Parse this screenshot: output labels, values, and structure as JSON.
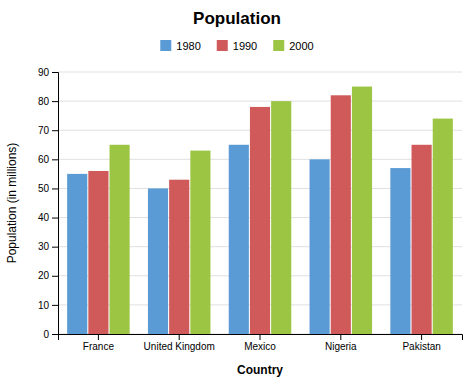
{
  "chart_data": {
    "type": "bar",
    "title": "Population",
    "xlabel": "Country",
    "ylabel": "Population (in millions)",
    "categories": [
      "France",
      "United Kingdom",
      "Mexico",
      "Nigeria",
      "Pakistan"
    ],
    "series": [
      {
        "name": "1980",
        "color": "#5B9BD5",
        "values": [
          55,
          50,
          65,
          60,
          57
        ]
      },
      {
        "name": "1990",
        "color": "#D05A5A",
        "values": [
          56,
          53,
          78,
          82,
          65
        ]
      },
      {
        "name": "2000",
        "color": "#9DC544",
        "values": [
          65,
          63,
          80,
          85,
          74
        ]
      }
    ],
    "ylim": [
      0,
      90
    ],
    "yticks": [
      0,
      10,
      20,
      30,
      40,
      50,
      60,
      70,
      80,
      90
    ],
    "grid": true,
    "legend": "top"
  }
}
